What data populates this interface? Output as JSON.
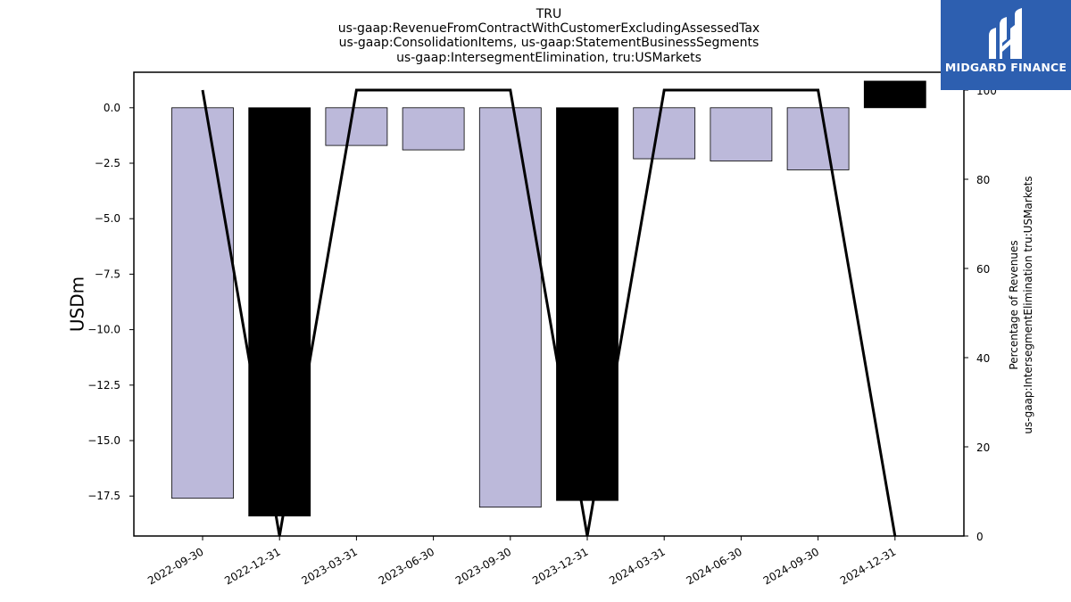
{
  "chart_data": {
    "type": "bar",
    "title_lines": [
      "TRU",
      "us-gaap:RevenueFromContractWithCustomerExcludingAssessedTax",
      "us-gaap:ConsolidationItems, us-gaap:StatementBusinessSegments",
      "us-gaap:IntersegmentElimination, tru:USMarkets"
    ],
    "categories": [
      "2022-09-30",
      "2022-12-31",
      "2023-03-31",
      "2023-06-30",
      "2023-09-30",
      "2023-12-31",
      "2024-03-31",
      "2024-06-30",
      "2024-09-30",
      "2024-12-31"
    ],
    "series": [
      {
        "type": "bar",
        "values": [
          -17.6,
          -18.4,
          -1.7,
          -1.9,
          -18.0,
          -17.7,
          -2.3,
          -2.4,
          -2.8,
          1.2
        ],
        "colors": [
          "#bcb9da",
          "#000000",
          "#bcb9da",
          "#bcb9da",
          "#bcb9da",
          "#000000",
          "#bcb9da",
          "#bcb9da",
          "#bcb9da",
          "#000000"
        ],
        "axis": "left"
      },
      {
        "type": "line",
        "values": [
          100,
          0,
          100,
          100,
          100,
          0,
          100,
          100,
          100,
          0
        ],
        "color": "#000000",
        "axis": "right"
      }
    ],
    "ylabel": "USDm",
    "ylim": [
      -19.3,
      1.6
    ],
    "yticks": [
      0.0,
      -2.5,
      -5.0,
      -7.5,
      -10.0,
      -12.5,
      -15.0,
      -17.5
    ],
    "ytick_labels": [
      "0.0",
      "−2.5",
      "−5.0",
      "−7.5",
      "−10.0",
      "−12.5",
      "−15.0",
      "−17.5"
    ],
    "y2label_lines": [
      "Percentage of Revenues",
      "us-gaap:IntersegmentElimination tru:USMarkets"
    ],
    "y2lim": [
      0,
      104
    ],
    "y2ticks": [
      0,
      20,
      40,
      60,
      80,
      100
    ],
    "y2tick_labels": [
      "0",
      "20",
      "40",
      "60",
      "80",
      "100"
    ],
    "grid": false
  },
  "logo": {
    "text": "MIDGARD FINANCE",
    "icon": "midgard-logo-icon",
    "background": "#2d5fb0"
  }
}
